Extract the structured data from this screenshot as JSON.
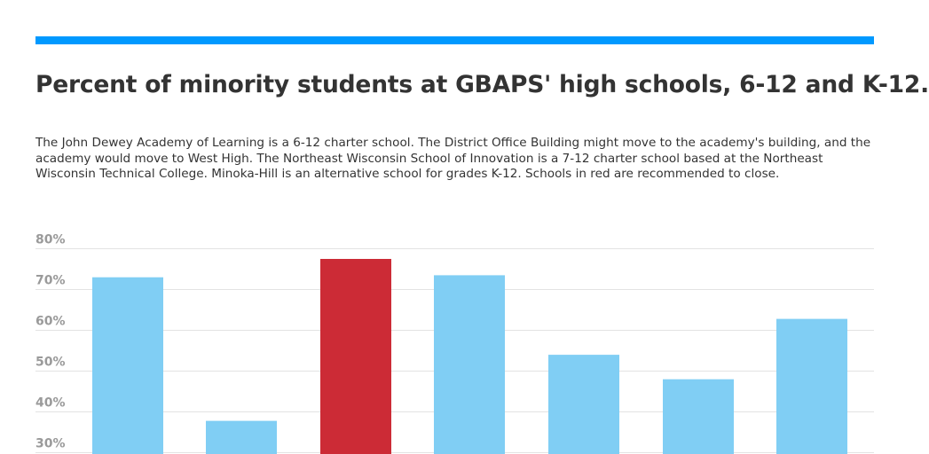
{
  "header": {
    "title": "Percent of minority students at GBAPS' high schools, 6-12 and K-12.",
    "subtitle": "The John Dewey Academy of Learning is a 6-12 charter school. The District Office Building might move to the academy's building, and the academy would move to West High. The Northeast Wisconsin School of Innovation is a 7-12 charter school based at the Northeast Wisconsin Technical College. Minoka-Hill is an alternative school for grades K-12. Schools in red are recommended to close."
  },
  "colors": {
    "accent_bar": "#0099ff",
    "title": "#333333",
    "bar_default": "#80cef4",
    "bar_close": "#cc2b36",
    "grid": "#e3e3e3",
    "tick": "#9a9a9a"
  },
  "chart_data": {
    "type": "bar",
    "title": "Percent of minority students at GBAPS' high schools, 6-12 and K-12.",
    "xlabel": "",
    "ylabel": "",
    "ylim": [
      30,
      80
    ],
    "yticks": [
      30,
      40,
      50,
      60,
      70,
      80
    ],
    "ytick_labels": [
      "30%",
      "40%",
      "50%",
      "60%",
      "70%",
      "80%"
    ],
    "grid": true,
    "values": [
      73.0,
      37.8,
      77.5,
      73.5,
      54.0,
      48.0,
      62.8
    ],
    "highlight": [
      false,
      false,
      true,
      false,
      false,
      false,
      false
    ]
  }
}
